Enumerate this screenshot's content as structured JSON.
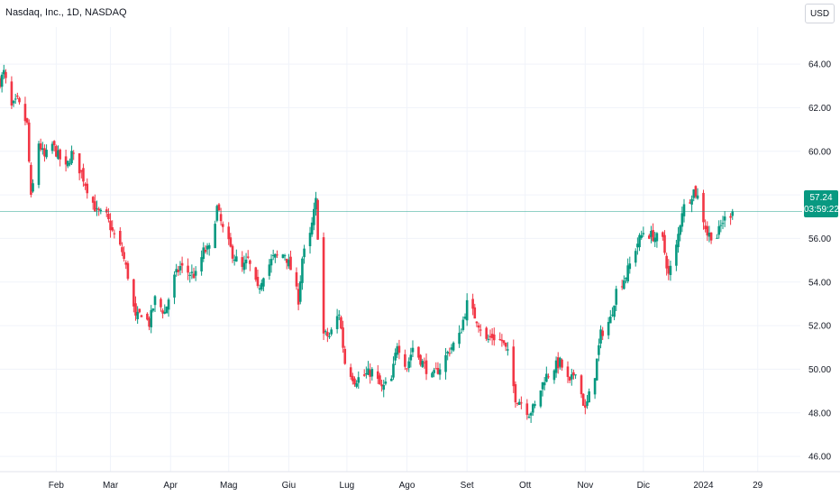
{
  "title": "Nasdaq, Inc., 1D, NASDAQ",
  "currency": "USD",
  "colors": {
    "up": "#089981",
    "down": "#f23645",
    "grid": "#f0f3fa",
    "price_line": "#089981"
  },
  "last_price_label": "57.24",
  "countdown": "03:59:22",
  "chart_data": {
    "type": "candlestick",
    "y_tick_labels": [
      "64.00",
      "62.00",
      "60.00",
      "58.00",
      "56.00",
      "54.00",
      "52.00",
      "50.00",
      "48.00",
      "46.00"
    ],
    "y_ticks": [
      64,
      62,
      60,
      58,
      56,
      54,
      52,
      50,
      48,
      46
    ],
    "ylim": [
      45.3,
      65.7
    ],
    "x_tick_labels": [
      "Feb",
      "Mar",
      "Apr",
      "Mag",
      "Giu",
      "Lug",
      "Ago",
      "Set",
      "Ott",
      "Nov",
      "Dic",
      "2024",
      "29"
    ],
    "x_tick_dates": [
      "2023-02-01",
      "2023-03-01",
      "2023-04-01",
      "2023-05-01",
      "2023-06-01",
      "2023-07-01",
      "2023-08-01",
      "2023-09-01",
      "2023-10-01",
      "2023-11-01",
      "2023-12-01",
      "2024-01-01",
      "2024-01-29"
    ],
    "x_range": [
      "2023-01-03",
      "2024-02-20"
    ],
    "last_price": 57.24,
    "close_path": [
      [
        "2023-01-03",
        63.2
      ],
      [
        "2023-01-05",
        63.6
      ],
      [
        "2023-01-09",
        62.0
      ],
      [
        "2023-01-12",
        62.3
      ],
      [
        "2023-01-17",
        61.2
      ],
      [
        "2023-01-19",
        57.8
      ],
      [
        "2023-01-23",
        60.4
      ],
      [
        "2023-01-26",
        59.7
      ],
      [
        "2023-01-30",
        60.3
      ],
      [
        "2023-02-02",
        59.8
      ],
      [
        "2023-02-06",
        59.2
      ],
      [
        "2023-02-09",
        59.9
      ],
      [
        "2023-02-14",
        59.0
      ],
      [
        "2023-02-17",
        58.3
      ],
      [
        "2023-02-22",
        57.2
      ],
      [
        "2023-02-27",
        57.0
      ],
      [
        "2023-03-02",
        56.3
      ],
      [
        "2023-03-07",
        55.4
      ],
      [
        "2023-03-10",
        54.3
      ],
      [
        "2023-03-14",
        52.3
      ],
      [
        "2023-03-17",
        52.6
      ],
      [
        "2023-03-21",
        52.1
      ],
      [
        "2023-03-24",
        53.2
      ],
      [
        "2023-03-29",
        52.6
      ],
      [
        "2023-04-03",
        54.2
      ],
      [
        "2023-04-06",
        54.7
      ],
      [
        "2023-04-11",
        54.4
      ],
      [
        "2023-04-14",
        54.3
      ],
      [
        "2023-04-18",
        55.4
      ],
      [
        "2023-04-21",
        55.5
      ],
      [
        "2023-04-25",
        57.4
      ],
      [
        "2023-04-28",
        56.4
      ],
      [
        "2023-05-03",
        55.3
      ],
      [
        "2023-05-08",
        54.6
      ],
      [
        "2023-05-11",
        55.0
      ],
      [
        "2023-05-16",
        53.6
      ],
      [
        "2023-05-19",
        54.4
      ],
      [
        "2023-05-24",
        55.1
      ],
      [
        "2023-05-30",
        55.3
      ],
      [
        "2023-06-02",
        54.6
      ],
      [
        "2023-06-06",
        53.2
      ],
      [
        "2023-06-08",
        55.1
      ],
      [
        "2023-06-12",
        56.1
      ],
      [
        "2023-06-15",
        57.7
      ],
      [
        "2023-06-19",
        51.6
      ],
      [
        "2023-06-22",
        51.5
      ],
      [
        "2023-06-27",
        52.6
      ],
      [
        "2023-06-30",
        50.3
      ],
      [
        "2023-07-05",
        49.5
      ],
      [
        "2023-07-10",
        49.7
      ],
      [
        "2023-07-14",
        49.9
      ],
      [
        "2023-07-19",
        49.1
      ],
      [
        "2023-07-24",
        49.5
      ],
      [
        "2023-07-27",
        51.2
      ],
      [
        "2023-08-01",
        50.1
      ],
      [
        "2023-08-04",
        51.0
      ],
      [
        "2023-08-09",
        50.3
      ],
      [
        "2023-08-14",
        49.6
      ],
      [
        "2023-08-18",
        50.1
      ],
      [
        "2023-08-23",
        50.9
      ],
      [
        "2023-08-28",
        51.5
      ],
      [
        "2023-09-01",
        53.0
      ],
      [
        "2023-09-06",
        52.3
      ],
      [
        "2023-09-11",
        51.3
      ],
      [
        "2023-09-14",
        51.5
      ],
      [
        "2023-09-19",
        51.3
      ],
      [
        "2023-09-22",
        50.7
      ],
      [
        "2023-09-26",
        48.7
      ],
      [
        "2023-09-29",
        48.5
      ],
      [
        "2023-10-03",
        48.0
      ],
      [
        "2023-10-06",
        48.3
      ],
      [
        "2023-10-11",
        49.6
      ],
      [
        "2023-10-16",
        50.1
      ],
      [
        "2023-10-19",
        50.3
      ],
      [
        "2023-10-24",
        49.3
      ],
      [
        "2023-10-27",
        50.0
      ],
      [
        "2023-11-01",
        48.1
      ],
      [
        "2023-11-06",
        49.8
      ],
      [
        "2023-11-09",
        51.6
      ],
      [
        "2023-11-14",
        52.3
      ],
      [
        "2023-11-17",
        53.6
      ],
      [
        "2023-11-22",
        54.3
      ],
      [
        "2023-11-28",
        55.8
      ],
      [
        "2023-12-01",
        56.3
      ],
      [
        "2023-12-06",
        56.1
      ],
      [
        "2023-12-11",
        55.9
      ],
      [
        "2023-12-14",
        54.3
      ],
      [
        "2023-12-18",
        55.6
      ],
      [
        "2023-12-21",
        57.3
      ],
      [
        "2023-12-27",
        58.2
      ],
      [
        "2023-12-29",
        57.9
      ],
      [
        "2024-01-03",
        56.2
      ],
      [
        "2024-01-08",
        56.1
      ],
      [
        "2024-01-11",
        56.8
      ],
      [
        "2024-01-16",
        57.24
      ]
    ]
  }
}
